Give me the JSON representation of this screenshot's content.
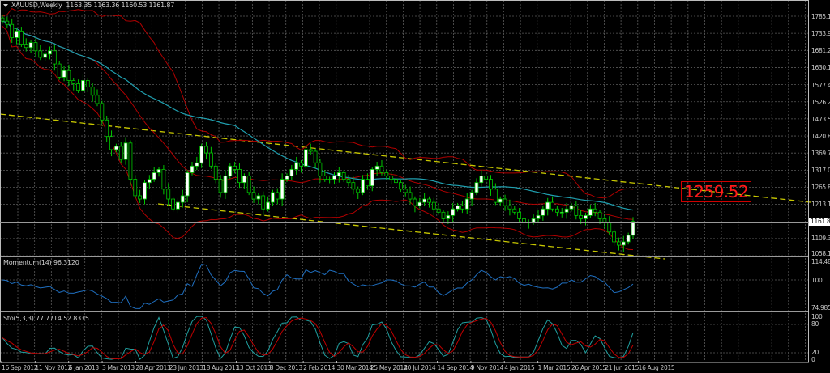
{
  "header": {
    "symbol_label": "XAUUSD,Weekly",
    "ohlc": "1163.35 1163.36 1160.53 1161.87"
  },
  "main_pane": {
    "price_axis": [
      "1785.10",
      "1733.95",
      "1681.25",
      "1630.10",
      "1577.40",
      "1526.25",
      "1473.55",
      "1420.85",
      "1369.70",
      "1317.00",
      "1265.85",
      "1213.15",
      "1161.87",
      "1109.30",
      "1058.15"
    ],
    "current_price": "1161.87",
    "annotation": "1259.52",
    "colors": {
      "bull_candle": "#ffffff",
      "bear_candle": "#000000",
      "candle_outline": "#00c800",
      "bollinger": "#b00000",
      "ma": "#20a0b0",
      "trendline": "#c8c800",
      "grid": "#5a5a5a",
      "annotation": "#ff1a1a"
    }
  },
  "momentum_pane": {
    "label": "Momentum(14) 96.3120",
    "axis": [
      "114.4832",
      "100",
      "74.9853"
    ],
    "color": "#1f6fc0"
  },
  "stoch_pane": {
    "label": "Sto(5,3,3) 77.7714 52.8335",
    "axis": [
      "100",
      "80",
      "20",
      "0"
    ],
    "main_color": "#20a0a0",
    "signal_color": "#c00000"
  },
  "date_axis": [
    "16 Sep 2012",
    "11 Nov 2012",
    "6 Jan 2013",
    "3 Mar 2013",
    "28 Apr 2013",
    "23 Jun 2013",
    "18 Aug 2013",
    "13 Oct 2013",
    "8 Dec 2013",
    "2 Feb 2014",
    "30 Mar 2014",
    "25 May 2014",
    "20 Jul 2014",
    "14 Sep 2014",
    "9 Nov 2014",
    "4 Jan 2015",
    "1 Mar 2015",
    "26 Apr 2015",
    "21 Jun 2015",
    "16 Aug 2015"
  ],
  "chart_data": [
    {
      "type": "candlestick",
      "title": "XAUUSD,Weekly",
      "ylim": [
        1058.15,
        1785.1
      ],
      "y_ticks": [
        1785.1,
        1733.95,
        1681.25,
        1630.1,
        1577.4,
        1526.25,
        1473.55,
        1420.85,
        1369.7,
        1317.0,
        1265.85,
        1213.15,
        1161.87,
        1109.3,
        1058.15
      ],
      "x_ticks": [
        "16 Sep 2012",
        "11 Nov 2012",
        "6 Jan 2013",
        "3 Mar 2013",
        "28 Apr 2013",
        "23 Jun 2013",
        "18 Aug 2013",
        "13 Oct 2013",
        "8 Dec 2013",
        "2 Feb 2014",
        "30 Mar 2014",
        "25 May 2014",
        "20 Jul 2014",
        "14 Sep 2014",
        "9 Nov 2014",
        "4 Jan 2015",
        "1 Mar 2015",
        "26 Apr 2015",
        "21 Jun 2015",
        "16 Aug 2015"
      ],
      "last_bar": {
        "open": 1163.35,
        "high": 1163.36,
        "low": 1160.53,
        "close": 1161.87
      },
      "annotations": [
        {
          "text": "1259.52",
          "type": "label"
        }
      ],
      "overlays": [
        "Bollinger Bands (red)",
        "Moving Average (cyan)",
        "Descending trend channel (yellow dashed)"
      ],
      "close_approx": [
        1770,
        1760,
        1720,
        1740,
        1700,
        1690,
        1705,
        1680,
        1660,
        1670,
        1680,
        1640,
        1600,
        1620,
        1590,
        1580,
        1560,
        1590,
        1570,
        1545,
        1520,
        1470,
        1420,
        1380,
        1390,
        1350,
        1400,
        1290,
        1240,
        1230,
        1280,
        1290,
        1310,
        1320,
        1260,
        1230,
        1200,
        1220,
        1240,
        1310,
        1330,
        1340,
        1390,
        1370,
        1330,
        1290,
        1250,
        1300,
        1330,
        1320,
        1280,
        1300,
        1250,
        1230,
        1240,
        1200,
        1220,
        1250,
        1230,
        1290,
        1300,
        1320,
        1340,
        1330,
        1380,
        1375,
        1340,
        1300,
        1290,
        1290,
        1300,
        1310,
        1290,
        1280,
        1260,
        1250,
        1290,
        1270,
        1320,
        1330,
        1310,
        1300,
        1290,
        1280,
        1260,
        1250,
        1230,
        1210,
        1220,
        1230,
        1220,
        1200,
        1190,
        1170,
        1180,
        1200,
        1210,
        1200,
        1230,
        1250,
        1280,
        1300,
        1290,
        1260,
        1220,
        1230,
        1210,
        1200,
        1190,
        1170,
        1160,
        1160,
        1170,
        1180,
        1200,
        1220,
        1200,
        1190,
        1190,
        1200,
        1210,
        1180,
        1170,
        1180,
        1200,
        1190,
        1170,
        1160,
        1130,
        1100,
        1090,
        1100,
        1120,
        1162
      ]
    },
    {
      "type": "line",
      "title": "Momentum(14) 96.3120",
      "ylim": [
        74.9853,
        114.4832
      ],
      "y_ticks": [
        114.4832,
        100,
        74.9853
      ],
      "series": [
        {
          "name": "Momentum(14)",
          "last": 96.312
        }
      ]
    },
    {
      "type": "line",
      "title": "Sto(5,3,3) 77.7714 52.8335",
      "ylim": [
        0,
        100
      ],
      "y_ticks": [
        100,
        80,
        20,
        0
      ],
      "series": [
        {
          "name": "%K",
          "last": 77.7714
        },
        {
          "name": "%D",
          "last": 52.8335
        }
      ]
    }
  ]
}
